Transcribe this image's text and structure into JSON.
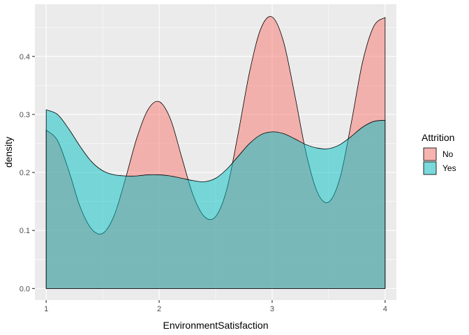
{
  "chart_data": {
    "type": "area",
    "title": "",
    "xlabel": "EnvironmentSatisfaction",
    "ylabel": "density",
    "xlim": [
      0.9,
      4.1
    ],
    "ylim": [
      -0.02,
      0.49
    ],
    "x_ticks": [
      1,
      2,
      3,
      4
    ],
    "x_tick_labels": [
      "1",
      "2",
      "3",
      "4"
    ],
    "y_ticks": [
      0,
      0.1,
      0.2,
      0.3,
      0.4
    ],
    "y_tick_labels": [
      "0.0",
      "0.1",
      "0.2",
      "0.3",
      "0.4"
    ],
    "grid": true,
    "legend": {
      "title": "Attrition",
      "position": "right"
    },
    "series": [
      {
        "name": "No",
        "color": "#F8766D",
        "fill_opacity": 0.5,
        "x": [
          1.0,
          1.1,
          1.2,
          1.3,
          1.4,
          1.5,
          1.6,
          1.7,
          1.8,
          1.9,
          2.0,
          2.1,
          2.2,
          2.3,
          2.4,
          2.5,
          2.6,
          2.7,
          2.8,
          2.9,
          3.0,
          3.1,
          3.2,
          3.3,
          3.4,
          3.5,
          3.6,
          3.7,
          3.8,
          3.9,
          4.0
        ],
        "y": [
          0.273,
          0.255,
          0.203,
          0.141,
          0.103,
          0.095,
          0.125,
          0.188,
          0.258,
          0.308,
          0.322,
          0.292,
          0.226,
          0.161,
          0.124,
          0.124,
          0.172,
          0.268,
          0.373,
          0.448,
          0.468,
          0.426,
          0.334,
          0.234,
          0.166,
          0.149,
          0.19,
          0.285,
          0.39,
          0.452,
          0.467
        ]
      },
      {
        "name": "Yes",
        "color": "#00BFC4",
        "fill_opacity": 0.5,
        "x": [
          1.0,
          1.1,
          1.2,
          1.3,
          1.4,
          1.5,
          1.6,
          1.7,
          1.8,
          1.9,
          2.0,
          2.1,
          2.2,
          2.3,
          2.4,
          2.5,
          2.6,
          2.7,
          2.8,
          2.9,
          3.0,
          3.1,
          3.2,
          3.3,
          3.4,
          3.5,
          3.6,
          3.7,
          3.8,
          3.9,
          4.0
        ],
        "y": [
          0.308,
          0.3,
          0.275,
          0.245,
          0.219,
          0.203,
          0.196,
          0.194,
          0.194,
          0.196,
          0.196,
          0.194,
          0.19,
          0.186,
          0.184,
          0.19,
          0.206,
          0.228,
          0.25,
          0.265,
          0.27,
          0.267,
          0.258,
          0.248,
          0.242,
          0.241,
          0.248,
          0.262,
          0.278,
          0.288,
          0.29
        ]
      }
    ]
  }
}
